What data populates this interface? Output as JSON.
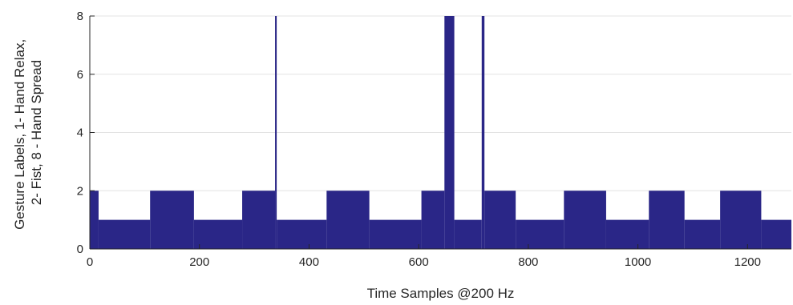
{
  "chart_data": {
    "type": "area",
    "xlabel": "Time Samples @200 Hz",
    "ylabel_lines": [
      "Gesture Labels, 1- Hand Relax,",
      "2- Fist, 8 - Hand Spread"
    ],
    "xlim": [
      0,
      1280
    ],
    "ylim": [
      0,
      8
    ],
    "xticks": [
      0,
      200,
      400,
      600,
      800,
      1000,
      1200
    ],
    "yticks": [
      0,
      2,
      4,
      6,
      8
    ],
    "grid": true,
    "colors": {
      "fill": "#2a2687",
      "grid": "#e3e3e3",
      "axis": "#262626"
    },
    "series": [
      {
        "steps": [
          {
            "x0": 0,
            "x1": 16,
            "y": 2
          },
          {
            "x0": 16,
            "x1": 110,
            "y": 1
          },
          {
            "x0": 110,
            "x1": 190,
            "y": 2
          },
          {
            "x0": 190,
            "x1": 278,
            "y": 1
          },
          {
            "x0": 278,
            "x1": 338,
            "y": 2
          },
          {
            "x0": 338,
            "x1": 341,
            "y": 8
          },
          {
            "x0": 341,
            "x1": 432,
            "y": 1
          },
          {
            "x0": 432,
            "x1": 510,
            "y": 2
          },
          {
            "x0": 510,
            "x1": 605,
            "y": 1
          },
          {
            "x0": 605,
            "x1": 647,
            "y": 2
          },
          {
            "x0": 647,
            "x1": 665,
            "y": 8
          },
          {
            "x0": 665,
            "x1": 715,
            "y": 1
          },
          {
            "x0": 715,
            "x1": 720,
            "y": 8
          },
          {
            "x0": 720,
            "x1": 777,
            "y": 2
          },
          {
            "x0": 777,
            "x1": 865,
            "y": 1
          },
          {
            "x0": 865,
            "x1": 942,
            "y": 2
          },
          {
            "x0": 942,
            "x1": 1020,
            "y": 1
          },
          {
            "x0": 1020,
            "x1": 1085,
            "y": 2
          },
          {
            "x0": 1085,
            "x1": 1150,
            "y": 1
          },
          {
            "x0": 1150,
            "x1": 1225,
            "y": 2
          },
          {
            "x0": 1225,
            "x1": 1280,
            "y": 1
          }
        ]
      }
    ]
  }
}
